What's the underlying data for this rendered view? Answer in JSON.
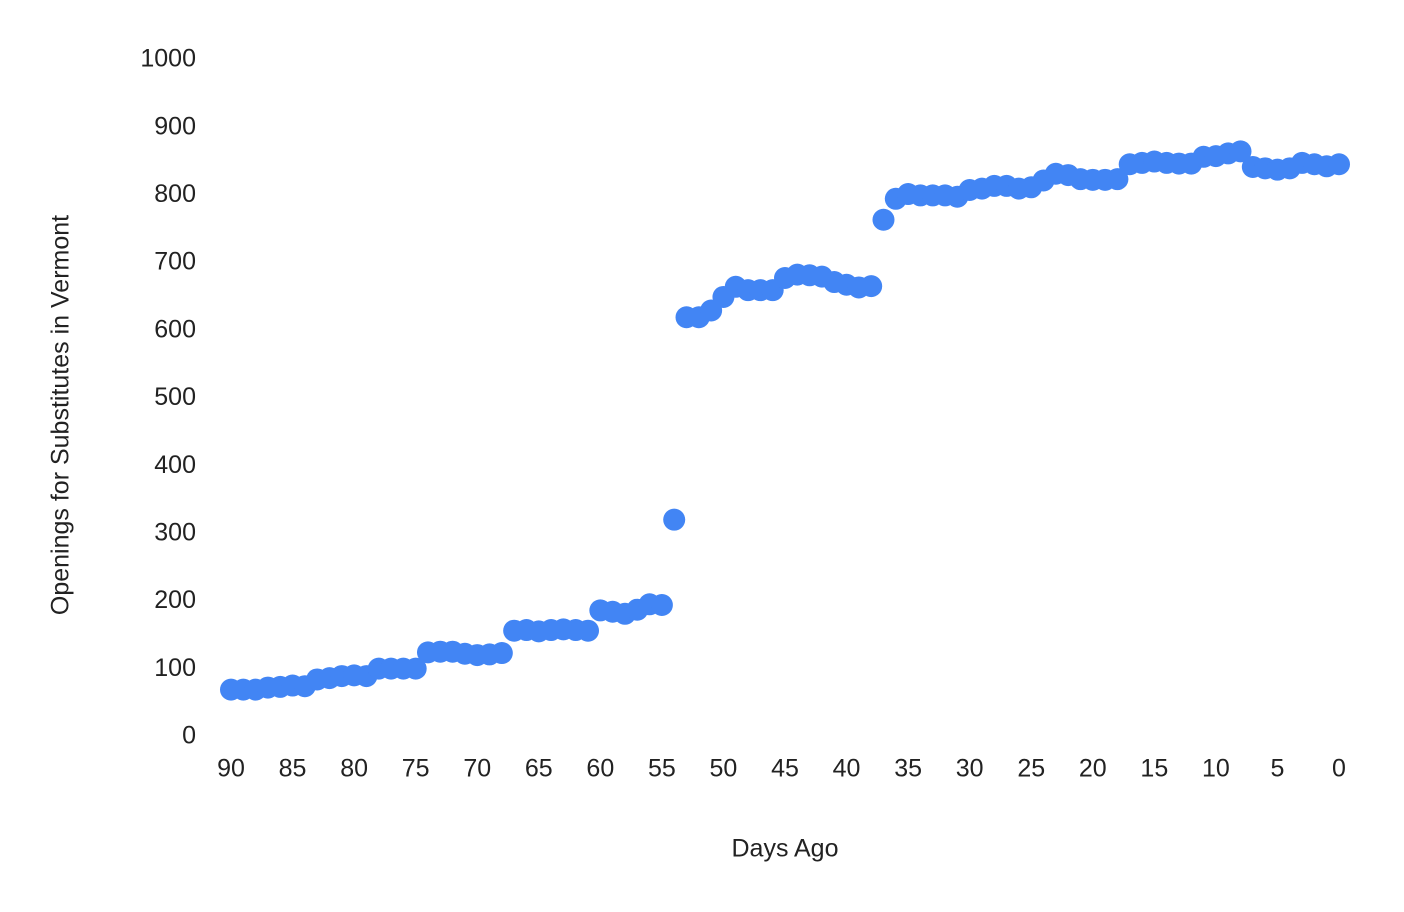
{
  "chart_data": {
    "type": "scatter",
    "x_label": "Days Ago",
    "y_label": "Openings for Substitutes in Vermont",
    "color": "#4285f4",
    "grid": false,
    "x": [
      90,
      89,
      88,
      87,
      86,
      85,
      84,
      83,
      82,
      81,
      80,
      79,
      78,
      77,
      76,
      75,
      74,
      73,
      72,
      71,
      70,
      69,
      68,
      67,
      66,
      65,
      64,
      63,
      62,
      61,
      60,
      59,
      58,
      57,
      56,
      55,
      54,
      53,
      52,
      51,
      50,
      49,
      48,
      47,
      46,
      45,
      44,
      43,
      42,
      41,
      40,
      39,
      38,
      37,
      36,
      35,
      34,
      33,
      32,
      31,
      30,
      29,
      28,
      27,
      26,
      25,
      24,
      23,
      22,
      21,
      20,
      19,
      18,
      17,
      16,
      15,
      14,
      13,
      12,
      11,
      10,
      9,
      8,
      7,
      6,
      5,
      4,
      3,
      2,
      1,
      0
    ],
    "values": [
      70,
      70,
      70,
      73,
      74,
      76,
      75,
      85,
      87,
      90,
      91,
      90,
      101,
      101,
      101,
      101,
      125,
      126,
      126,
      123,
      121,
      122,
      124,
      157,
      158,
      156,
      158,
      159,
      158,
      157,
      187,
      185,
      182,
      188,
      196,
      195,
      321,
      620,
      620,
      630,
      650,
      665,
      660,
      660,
      660,
      678,
      683,
      682,
      680,
      672,
      668,
      664,
      666,
      764,
      795,
      802,
      800,
      800,
      800,
      798,
      808,
      810,
      814,
      814,
      810,
      812,
      822,
      832,
      830,
      824,
      823,
      823,
      824,
      846,
      848,
      850,
      848,
      847,
      847,
      857,
      858,
      862,
      865,
      842,
      840,
      838,
      840,
      848,
      846,
      843,
      846
    ],
    "xlim": [
      90,
      0
    ],
    "xticks": [
      90,
      85,
      80,
      75,
      70,
      65,
      60,
      55,
      50,
      45,
      40,
      35,
      30,
      25,
      20,
      15,
      10,
      5,
      0
    ],
    "ylim": [
      0,
      1000
    ],
    "yticks": [
      0,
      100,
      200,
      300,
      400,
      500,
      600,
      700,
      800,
      900,
      1000
    ]
  }
}
